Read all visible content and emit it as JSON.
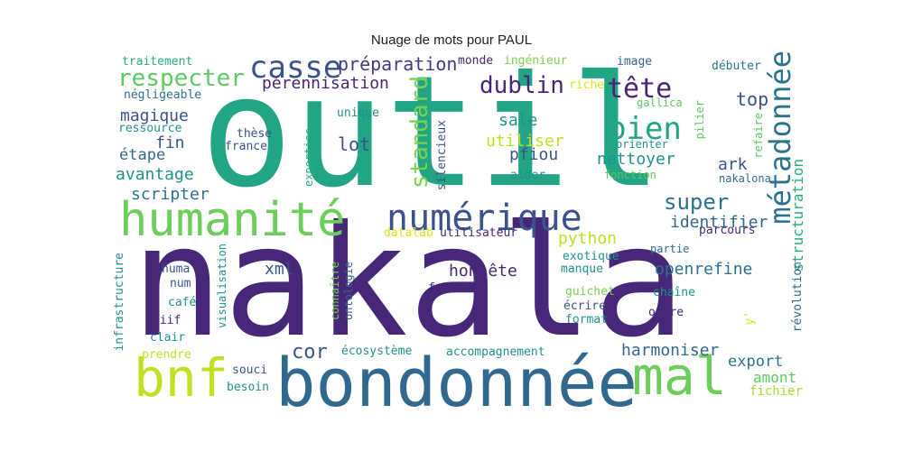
{
  "title": "Nuage de mots pour PAUL",
  "palette": {
    "dark_purple": "#472777",
    "purple": "#443983",
    "indigo": "#3b528b",
    "blue": "#31688e",
    "steel": "#2c728e",
    "teal": "#21918c",
    "green": "#27ad81",
    "mint": "#5ec962",
    "lime": "#a5db36",
    "yellow": "#dde318"
  },
  "words": [
    {
      "text": "nakala",
      "color": "#472777"
    },
    {
      "text": "outil",
      "color": "#21a585"
    },
    {
      "text": "bondonnée",
      "color": "#31688e"
    },
    {
      "text": "humanité",
      "color": "#6ccd5a"
    },
    {
      "text": "numérique",
      "color": "#3b528b"
    },
    {
      "text": "bnf",
      "color": "#c2df23"
    },
    {
      "text": "mal",
      "color": "#6ccd5a"
    },
    {
      "text": "métadonnée",
      "color": "#2c728e"
    },
    {
      "text": "casse",
      "color": "#3b528b"
    },
    {
      "text": "bien",
      "color": "#21a585"
    },
    {
      "text": "tête",
      "color": "#482475"
    },
    {
      "text": "respecter",
      "color": "#5ec962"
    },
    {
      "text": "standard",
      "color": "#7ad151"
    },
    {
      "text": "préparation",
      "color": "#443983"
    },
    {
      "text": "dublin",
      "color": "#472777"
    },
    {
      "text": "pérennisation",
      "color": "#482475"
    },
    {
      "text": "super",
      "color": "#2c728e"
    },
    {
      "text": "cor",
      "color": "#3b528b"
    },
    {
      "text": "magique",
      "color": "#3b528b"
    },
    {
      "text": "top",
      "color": "#3b528b"
    },
    {
      "text": "structuration",
      "color": "#27ad81"
    },
    {
      "text": "utiliser",
      "color": "#c2df23"
    },
    {
      "text": "sale",
      "color": "#21918c"
    },
    {
      "text": "pfiou",
      "color": "#3b528b"
    },
    {
      "text": "nettoyer",
      "color": "#21918c"
    },
    {
      "text": "lot",
      "color": "#3b528b"
    },
    {
      "text": "fin",
      "color": "#3b528b"
    },
    {
      "text": "avantage",
      "color": "#21918c"
    },
    {
      "text": "étape",
      "color": "#31688e"
    },
    {
      "text": "scripter",
      "color": "#2c728e"
    },
    {
      "text": "ark",
      "color": "#3b528b"
    },
    {
      "text": "identifier",
      "color": "#31688e"
    },
    {
      "text": "python",
      "color": "#c2df23"
    },
    {
      "text": "xml",
      "color": "#3b528b"
    },
    {
      "text": "honnête",
      "color": "#472777"
    },
    {
      "text": "openrefine",
      "color": "#2c728e"
    },
    {
      "text": "harmoniser",
      "color": "#31688e"
    },
    {
      "text": "export",
      "color": "#2c728e"
    },
    {
      "text": "amont",
      "color": "#5ec962"
    },
    {
      "text": "fichier",
      "color": "#a5db36"
    },
    {
      "text": "traitement",
      "color": "#27ad81"
    },
    {
      "text": "négligeable",
      "color": "#2c728e"
    },
    {
      "text": "ressource",
      "color": "#21918c"
    },
    {
      "text": "thèse",
      "color": "#3b528b"
    },
    {
      "text": "france",
      "color": "#3b528b"
    },
    {
      "text": "unique",
      "color": "#21918c"
    },
    {
      "text": "expertise",
      "color": "#27ad81"
    },
    {
      "text": "silencieux",
      "color": "#3b528b"
    },
    {
      "text": "monde",
      "color": "#472777"
    },
    {
      "text": "ingénieur",
      "color": "#7ad151"
    },
    {
      "text": "riche",
      "color": "#dde318"
    },
    {
      "text": "image",
      "color": "#31688e"
    },
    {
      "text": "gallica",
      "color": "#5ec962"
    },
    {
      "text": "débuter",
      "color": "#2c728e"
    },
    {
      "text": "pilier",
      "color": "#5ec962"
    },
    {
      "text": "refaire",
      "color": "#5ec962"
    },
    {
      "text": "orienter",
      "color": "#21918c"
    },
    {
      "text": "fonction",
      "color": "#5ec962"
    },
    {
      "text": "nakalona",
      "color": "#31688e"
    },
    {
      "text": "aider",
      "color": "#21918c"
    },
    {
      "text": "datalab",
      "color": "#dde318"
    },
    {
      "text": "utilisateur",
      "color": "#472777"
    },
    {
      "text": "parcours",
      "color": "#472777"
    },
    {
      "text": "partie",
      "color": "#31688e"
    },
    {
      "text": "exotique",
      "color": "#21918c"
    },
    {
      "text": "manque",
      "color": "#21918c"
    },
    {
      "text": "guichet",
      "color": "#7ad151"
    },
    {
      "text": "écrire",
      "color": "#3b528b"
    },
    {
      "text": "format",
      "color": "#21918c"
    },
    {
      "text": "offre",
      "color": "#472777"
    },
    {
      "text": "chaîne",
      "color": "#21918c"
    },
    {
      "text": "y'",
      "color": "#dde318"
    },
    {
      "text": "révolution",
      "color": "#31688e"
    },
    {
      "text": "infrastructure",
      "color": "#21918c"
    },
    {
      "text": "visualisation",
      "color": "#21918c"
    },
    {
      "text": "connaître",
      "color": "#7ad151"
    },
    {
      "text": "ontologie",
      "color": "#31688e"
    },
    {
      "text": "fournir",
      "color": "#472777"
    },
    {
      "text": "huma",
      "color": "#3b528b"
    },
    {
      "text": "num",
      "color": "#3b528b"
    },
    {
      "text": "café",
      "color": "#21918c"
    },
    {
      "text": "iiif",
      "color": "#472777"
    },
    {
      "text": "clair",
      "color": "#21918c"
    },
    {
      "text": "prendre",
      "color": "#c2df23"
    },
    {
      "text": "écosystème",
      "color": "#21918c"
    },
    {
      "text": "accompagnement",
      "color": "#21918c"
    },
    {
      "text": "souci",
      "color": "#3b528b"
    },
    {
      "text": "besoin",
      "color": "#21918c"
    }
  ]
}
